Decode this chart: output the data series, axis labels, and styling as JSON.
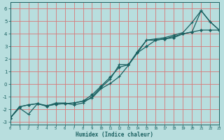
{
  "xlabel": "Humidex (Indice chaleur)",
  "xlim": [
    0,
    23
  ],
  "ylim": [
    -3.2,
    6.5
  ],
  "yticks": [
    -3,
    -2,
    -1,
    0,
    1,
    2,
    3,
    4,
    5,
    6
  ],
  "xticks": [
    0,
    1,
    2,
    3,
    4,
    5,
    6,
    7,
    8,
    9,
    10,
    11,
    12,
    13,
    14,
    15,
    16,
    17,
    18,
    19,
    20,
    21,
    22,
    23
  ],
  "background_color": "#b8dede",
  "grid_color": "#d87878",
  "line_color": "#1a6060",
  "line1_y": [
    -2.7,
    -1.9,
    -2.4,
    -1.55,
    -1.7,
    -1.6,
    -1.55,
    -1.5,
    -1.35,
    -1.1,
    -0.35,
    0.05,
    0.6,
    1.5,
    2.5,
    3.5,
    3.6,
    3.7,
    3.9,
    4.1,
    4.9,
    5.85,
    4.95,
    4.3
  ],
  "line2_y": [
    -2.7,
    -1.8,
    -1.65,
    -1.55,
    -1.75,
    -1.5,
    -1.5,
    -1.65,
    -1.5,
    -1.0,
    -0.25,
    0.4,
    1.55,
    1.55,
    2.6,
    3.5,
    3.5,
    3.6,
    3.8,
    4.0,
    4.15,
    5.85,
    4.95,
    4.3
  ],
  "line3_y": [
    -2.7,
    -1.8,
    -1.65,
    -1.55,
    -1.75,
    -1.6,
    -1.55,
    -1.5,
    -1.35,
    -0.85,
    -0.15,
    0.55,
    1.35,
    1.55,
    2.5,
    3.0,
    3.5,
    3.6,
    3.7,
    4.0,
    4.15,
    4.3,
    4.3,
    4.3
  ]
}
